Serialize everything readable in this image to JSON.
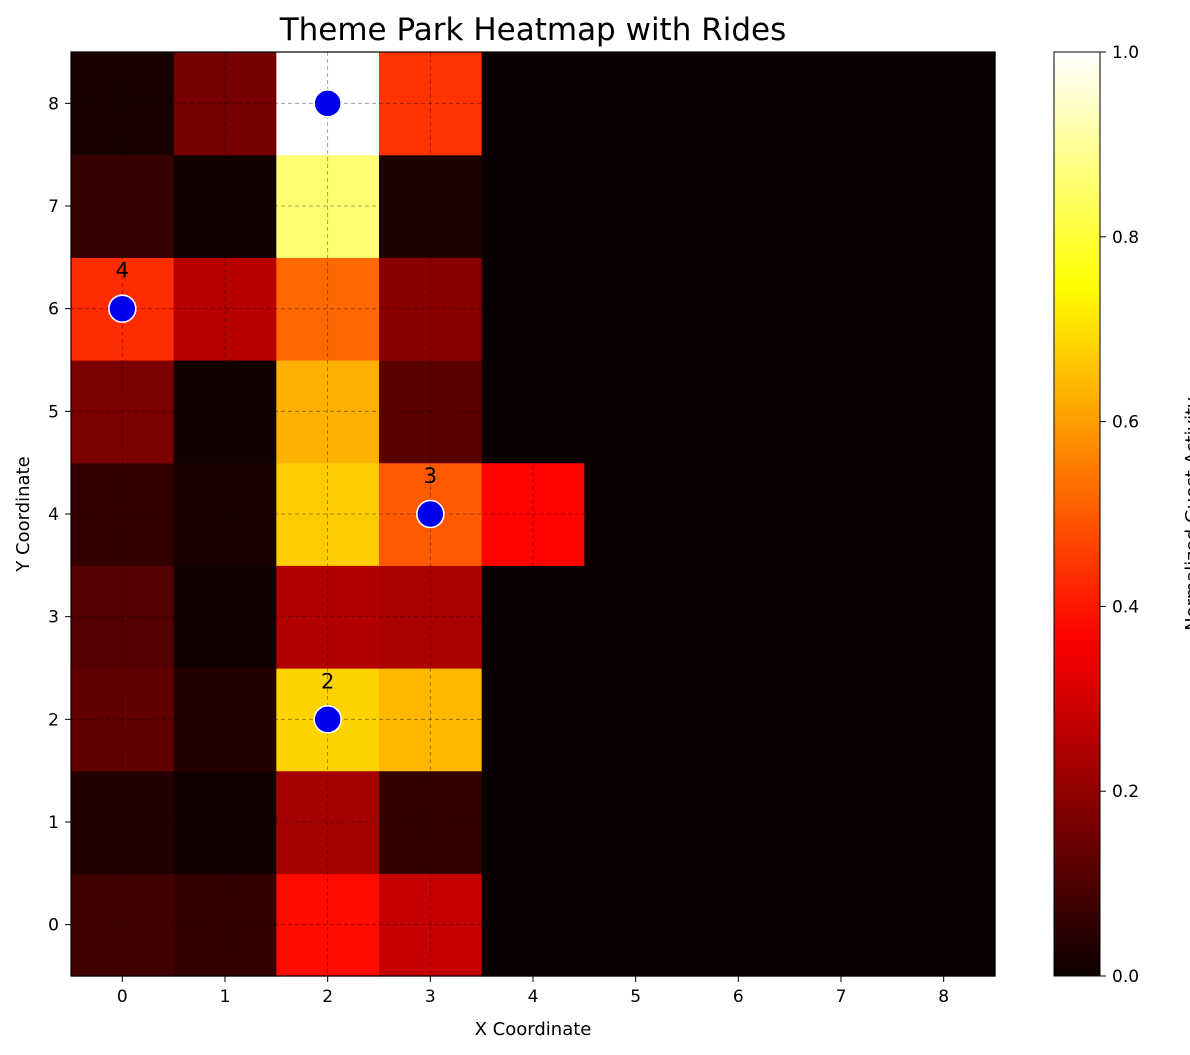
{
  "chart_data": {
    "type": "heatmap",
    "title": "Theme Park Heatmap with Rides",
    "xlabel": "X Coordinate",
    "ylabel": "Y Coordinate",
    "x_ticks": [
      0,
      1,
      2,
      3,
      4,
      5,
      6,
      7,
      8
    ],
    "y_ticks": [
      0,
      1,
      2,
      3,
      4,
      5,
      6,
      7,
      8
    ],
    "xlim": [
      -0.5,
      8.5
    ],
    "ylim": [
      -0.5,
      8.5
    ],
    "colormap": "hot",
    "grid": true,
    "colorbar": {
      "label": "Normalized Guest Activity",
      "range": [
        0,
        1
      ],
      "ticks": [
        "0.0",
        "0.2",
        "0.4",
        "0.6",
        "0.8",
        "1.0"
      ]
    },
    "rows_y": [
      0,
      1,
      2,
      3,
      4,
      5,
      6,
      7,
      8
    ],
    "values": [
      [
        0.08,
        0.06,
        0.38,
        0.28,
        0.0,
        0.0,
        0.0,
        0.0,
        0.0
      ],
      [
        0.04,
        0.01,
        0.23,
        0.06,
        0.0,
        0.0,
        0.0,
        0.0,
        0.0
      ],
      [
        0.13,
        0.04,
        0.68,
        0.64,
        0.0,
        0.0,
        0.0,
        0.0,
        0.0
      ],
      [
        0.11,
        0.01,
        0.25,
        0.24,
        0.0,
        0.0,
        0.0,
        0.0,
        0.0
      ],
      [
        0.06,
        0.02,
        0.67,
        0.5,
        0.37,
        0.0,
        0.0,
        0.0,
        0.0
      ],
      [
        0.17,
        0.01,
        0.63,
        0.12,
        0.0,
        0.0,
        0.0,
        0.0,
        0.0
      ],
      [
        0.43,
        0.26,
        0.52,
        0.19,
        0.0,
        0.0,
        0.0,
        0.0,
        0.0
      ],
      [
        0.07,
        0.01,
        0.86,
        0.03,
        0.0,
        0.0,
        0.0,
        0.0,
        0.0
      ],
      [
        0.02,
        0.16,
        1.0,
        0.44,
        0.0,
        0.0,
        0.0,
        0.0,
        0.0
      ]
    ],
    "rides": [
      {
        "x": 2,
        "y": 8,
        "label": ""
      },
      {
        "x": 0,
        "y": 6,
        "label": "4"
      },
      {
        "x": 3,
        "y": 4,
        "label": "3"
      },
      {
        "x": 2,
        "y": 2,
        "label": "2"
      }
    ],
    "ride_color": "#0000ee",
    "ride_label_color": "#ffffff"
  }
}
